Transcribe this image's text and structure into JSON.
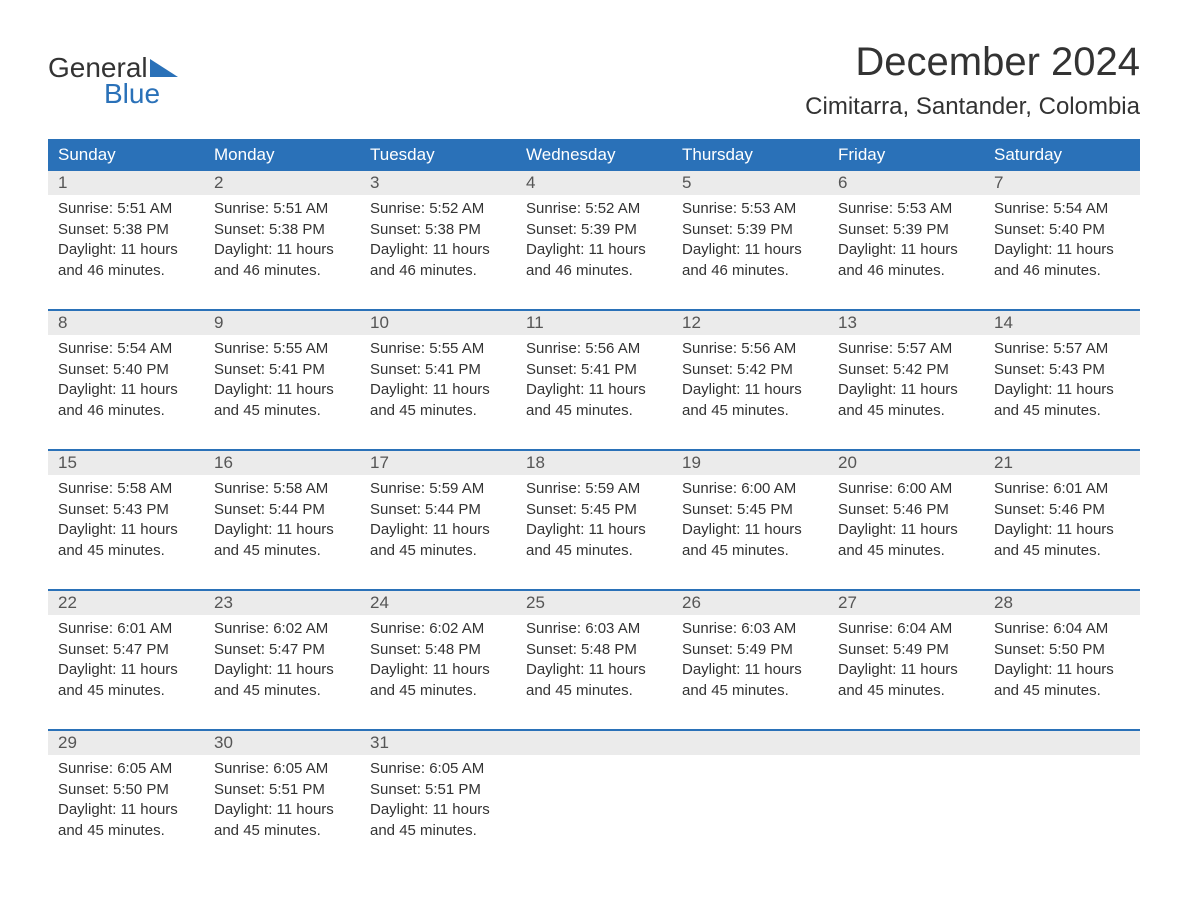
{
  "logo": {
    "word1": "General",
    "word2": "Blue",
    "shape_color": "#2a71b8"
  },
  "title": "December 2024",
  "location": "Cimitarra, Santander, Colombia",
  "colors": {
    "header_bg": "#2a71b8",
    "header_text": "#ffffff",
    "daynum_bg": "#ebebeb",
    "text": "#333333",
    "page_bg": "#ffffff"
  },
  "fonts": {
    "title_size": 40,
    "location_size": 24,
    "header_size": 17,
    "body_size": 15
  },
  "day_headers": [
    "Sunday",
    "Monday",
    "Tuesday",
    "Wednesday",
    "Thursday",
    "Friday",
    "Saturday"
  ],
  "weeks": [
    [
      {
        "day": "1",
        "sunrise": "Sunrise: 5:51 AM",
        "sunset": "Sunset: 5:38 PM",
        "daylight1": "Daylight: 11 hours",
        "daylight2": "and 46 minutes."
      },
      {
        "day": "2",
        "sunrise": "Sunrise: 5:51 AM",
        "sunset": "Sunset: 5:38 PM",
        "daylight1": "Daylight: 11 hours",
        "daylight2": "and 46 minutes."
      },
      {
        "day": "3",
        "sunrise": "Sunrise: 5:52 AM",
        "sunset": "Sunset: 5:38 PM",
        "daylight1": "Daylight: 11 hours",
        "daylight2": "and 46 minutes."
      },
      {
        "day": "4",
        "sunrise": "Sunrise: 5:52 AM",
        "sunset": "Sunset: 5:39 PM",
        "daylight1": "Daylight: 11 hours",
        "daylight2": "and 46 minutes."
      },
      {
        "day": "5",
        "sunrise": "Sunrise: 5:53 AM",
        "sunset": "Sunset: 5:39 PM",
        "daylight1": "Daylight: 11 hours",
        "daylight2": "and 46 minutes."
      },
      {
        "day": "6",
        "sunrise": "Sunrise: 5:53 AM",
        "sunset": "Sunset: 5:39 PM",
        "daylight1": "Daylight: 11 hours",
        "daylight2": "and 46 minutes."
      },
      {
        "day": "7",
        "sunrise": "Sunrise: 5:54 AM",
        "sunset": "Sunset: 5:40 PM",
        "daylight1": "Daylight: 11 hours",
        "daylight2": "and 46 minutes."
      }
    ],
    [
      {
        "day": "8",
        "sunrise": "Sunrise: 5:54 AM",
        "sunset": "Sunset: 5:40 PM",
        "daylight1": "Daylight: 11 hours",
        "daylight2": "and 46 minutes."
      },
      {
        "day": "9",
        "sunrise": "Sunrise: 5:55 AM",
        "sunset": "Sunset: 5:41 PM",
        "daylight1": "Daylight: 11 hours",
        "daylight2": "and 45 minutes."
      },
      {
        "day": "10",
        "sunrise": "Sunrise: 5:55 AM",
        "sunset": "Sunset: 5:41 PM",
        "daylight1": "Daylight: 11 hours",
        "daylight2": "and 45 minutes."
      },
      {
        "day": "11",
        "sunrise": "Sunrise: 5:56 AM",
        "sunset": "Sunset: 5:41 PM",
        "daylight1": "Daylight: 11 hours",
        "daylight2": "and 45 minutes."
      },
      {
        "day": "12",
        "sunrise": "Sunrise: 5:56 AM",
        "sunset": "Sunset: 5:42 PM",
        "daylight1": "Daylight: 11 hours",
        "daylight2": "and 45 minutes."
      },
      {
        "day": "13",
        "sunrise": "Sunrise: 5:57 AM",
        "sunset": "Sunset: 5:42 PM",
        "daylight1": "Daylight: 11 hours",
        "daylight2": "and 45 minutes."
      },
      {
        "day": "14",
        "sunrise": "Sunrise: 5:57 AM",
        "sunset": "Sunset: 5:43 PM",
        "daylight1": "Daylight: 11 hours",
        "daylight2": "and 45 minutes."
      }
    ],
    [
      {
        "day": "15",
        "sunrise": "Sunrise: 5:58 AM",
        "sunset": "Sunset: 5:43 PM",
        "daylight1": "Daylight: 11 hours",
        "daylight2": "and 45 minutes."
      },
      {
        "day": "16",
        "sunrise": "Sunrise: 5:58 AM",
        "sunset": "Sunset: 5:44 PM",
        "daylight1": "Daylight: 11 hours",
        "daylight2": "and 45 minutes."
      },
      {
        "day": "17",
        "sunrise": "Sunrise: 5:59 AM",
        "sunset": "Sunset: 5:44 PM",
        "daylight1": "Daylight: 11 hours",
        "daylight2": "and 45 minutes."
      },
      {
        "day": "18",
        "sunrise": "Sunrise: 5:59 AM",
        "sunset": "Sunset: 5:45 PM",
        "daylight1": "Daylight: 11 hours",
        "daylight2": "and 45 minutes."
      },
      {
        "day": "19",
        "sunrise": "Sunrise: 6:00 AM",
        "sunset": "Sunset: 5:45 PM",
        "daylight1": "Daylight: 11 hours",
        "daylight2": "and 45 minutes."
      },
      {
        "day": "20",
        "sunrise": "Sunrise: 6:00 AM",
        "sunset": "Sunset: 5:46 PM",
        "daylight1": "Daylight: 11 hours",
        "daylight2": "and 45 minutes."
      },
      {
        "day": "21",
        "sunrise": "Sunrise: 6:01 AM",
        "sunset": "Sunset: 5:46 PM",
        "daylight1": "Daylight: 11 hours",
        "daylight2": "and 45 minutes."
      }
    ],
    [
      {
        "day": "22",
        "sunrise": "Sunrise: 6:01 AM",
        "sunset": "Sunset: 5:47 PM",
        "daylight1": "Daylight: 11 hours",
        "daylight2": "and 45 minutes."
      },
      {
        "day": "23",
        "sunrise": "Sunrise: 6:02 AM",
        "sunset": "Sunset: 5:47 PM",
        "daylight1": "Daylight: 11 hours",
        "daylight2": "and 45 minutes."
      },
      {
        "day": "24",
        "sunrise": "Sunrise: 6:02 AM",
        "sunset": "Sunset: 5:48 PM",
        "daylight1": "Daylight: 11 hours",
        "daylight2": "and 45 minutes."
      },
      {
        "day": "25",
        "sunrise": "Sunrise: 6:03 AM",
        "sunset": "Sunset: 5:48 PM",
        "daylight1": "Daylight: 11 hours",
        "daylight2": "and 45 minutes."
      },
      {
        "day": "26",
        "sunrise": "Sunrise: 6:03 AM",
        "sunset": "Sunset: 5:49 PM",
        "daylight1": "Daylight: 11 hours",
        "daylight2": "and 45 minutes."
      },
      {
        "day": "27",
        "sunrise": "Sunrise: 6:04 AM",
        "sunset": "Sunset: 5:49 PM",
        "daylight1": "Daylight: 11 hours",
        "daylight2": "and 45 minutes."
      },
      {
        "day": "28",
        "sunrise": "Sunrise: 6:04 AM",
        "sunset": "Sunset: 5:50 PM",
        "daylight1": "Daylight: 11 hours",
        "daylight2": "and 45 minutes."
      }
    ],
    [
      {
        "day": "29",
        "sunrise": "Sunrise: 6:05 AM",
        "sunset": "Sunset: 5:50 PM",
        "daylight1": "Daylight: 11 hours",
        "daylight2": "and 45 minutes."
      },
      {
        "day": "30",
        "sunrise": "Sunrise: 6:05 AM",
        "sunset": "Sunset: 5:51 PM",
        "daylight1": "Daylight: 11 hours",
        "daylight2": "and 45 minutes."
      },
      {
        "day": "31",
        "sunrise": "Sunrise: 6:05 AM",
        "sunset": "Sunset: 5:51 PM",
        "daylight1": "Daylight: 11 hours",
        "daylight2": "and 45 minutes."
      },
      null,
      null,
      null,
      null
    ]
  ]
}
